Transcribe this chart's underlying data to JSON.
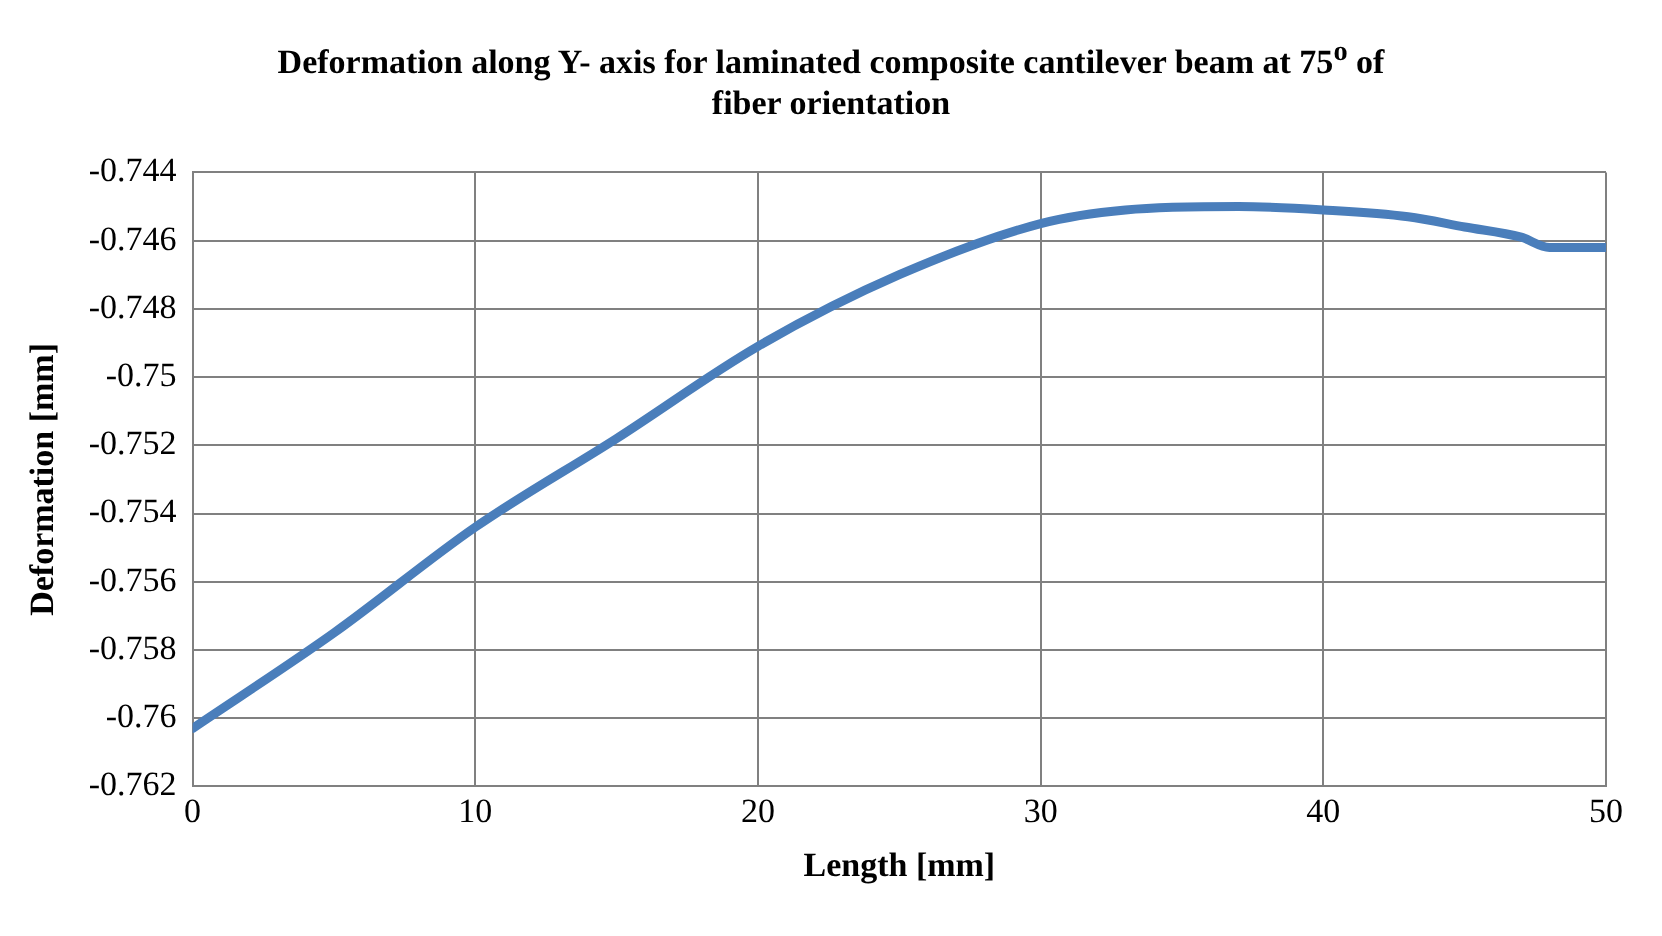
{
  "chart_data": {
    "type": "line",
    "title": "Deformation along Y- axis for laminated composite cantilever beam at 75$^{o}$ of fiber orientation",
    "xlabel": "Length [mm]",
    "ylabel": "Deformation [mm]",
    "x": [
      0,
      5,
      10,
      15,
      20,
      25,
      30,
      33,
      37,
      40,
      43,
      45,
      47,
      48,
      50
    ],
    "series": [
      {
        "color": "#4a7ebb",
        "values": [
          -0.7603,
          -0.7575,
          -0.7544,
          -0.7518,
          -0.7491,
          -0.747,
          -0.7455,
          -0.7451,
          -0.745,
          -0.7451,
          -0.7453,
          -0.7456,
          -0.7459,
          -0.7462,
          -0.7462
        ]
      }
    ],
    "xlim": [
      0,
      50
    ],
    "xticks": [
      0,
      10,
      20,
      30,
      40,
      50
    ],
    "ylim": [
      -0.762,
      -0.744
    ],
    "yticks": [
      -0.762,
      -0.76,
      -0.758,
      -0.756,
      -0.754,
      -0.752,
      -0.75,
      -0.748,
      -0.746,
      -0.744
    ],
    "grid": true,
    "legend": false,
    "marker": "none",
    "line_style": "solid"
  }
}
